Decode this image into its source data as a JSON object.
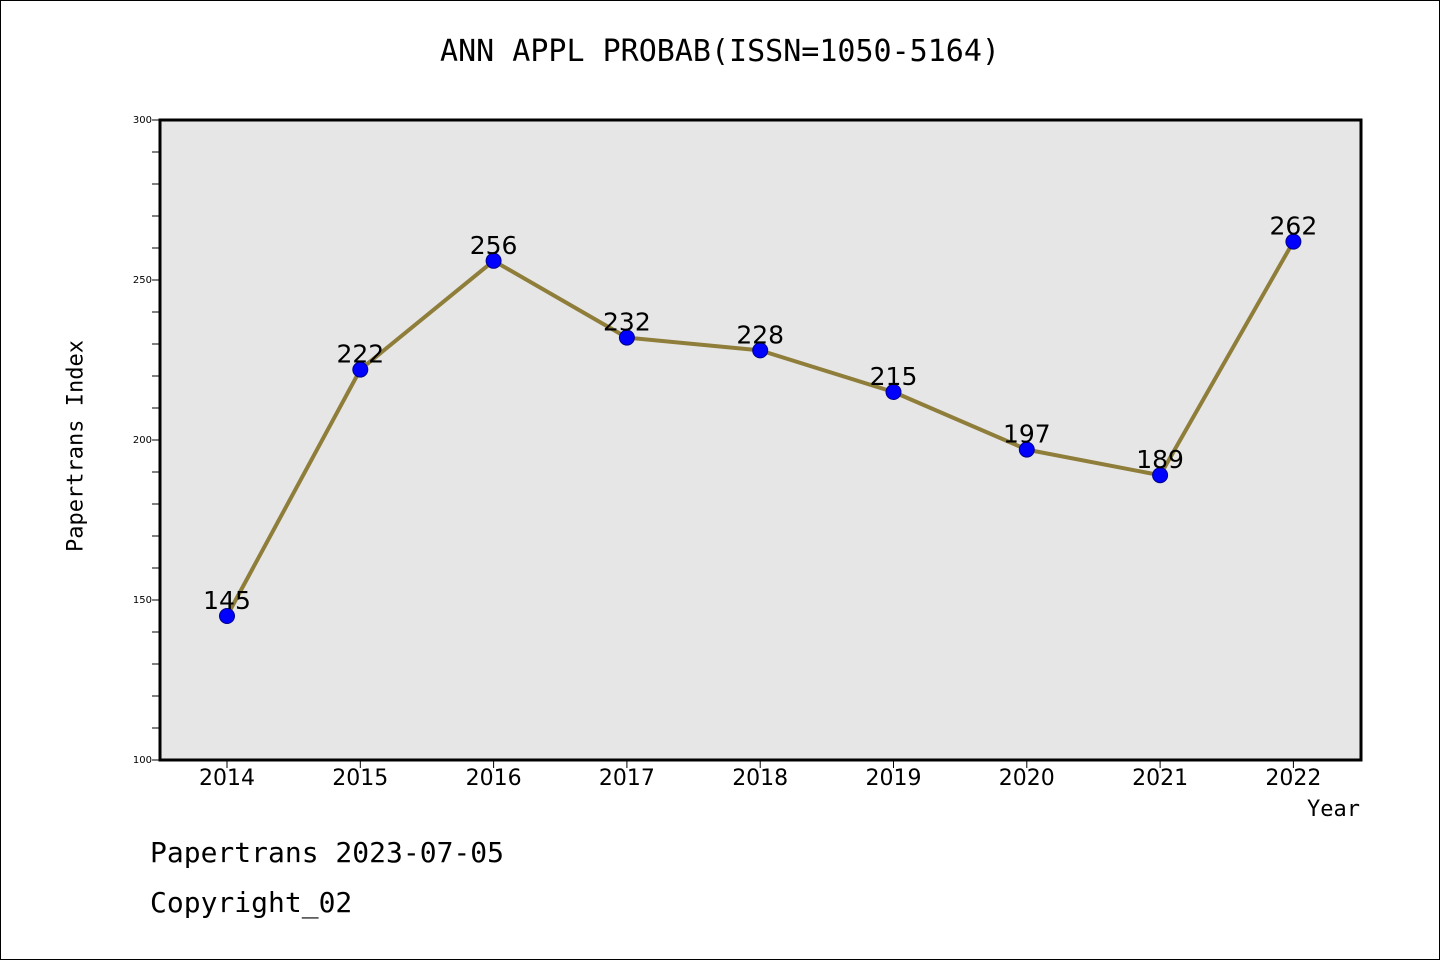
{
  "chart_data": {
    "type": "line",
    "title": "ANN APPL PROBAB(ISSN=1050-5164)",
    "xlabel": "Year",
    "ylabel": "Papertrans Index",
    "categories": [
      "2014",
      "2015",
      "2016",
      "2017",
      "2018",
      "2019",
      "2020",
      "2021",
      "2022"
    ],
    "series": [
      {
        "values": [
          145,
          222,
          256,
          232,
          228,
          215,
          197,
          189,
          262
        ]
      }
    ],
    "data_labels": [
      "145",
      "222",
      "256",
      "232",
      "228",
      "215",
      "197",
      "189",
      "262"
    ],
    "ylim": [
      100,
      300
    ],
    "yticks": [
      "100",
      "150",
      "200",
      "250",
      "300"
    ],
    "grid": false,
    "legend": "none",
    "colors": {
      "line": "#8f7d3a",
      "marker": "#0000ff",
      "plot_bg": "#e6e6e6"
    }
  },
  "footer": {
    "line1": "Papertrans 2023-07-05",
    "line2": "Copyright_02"
  }
}
